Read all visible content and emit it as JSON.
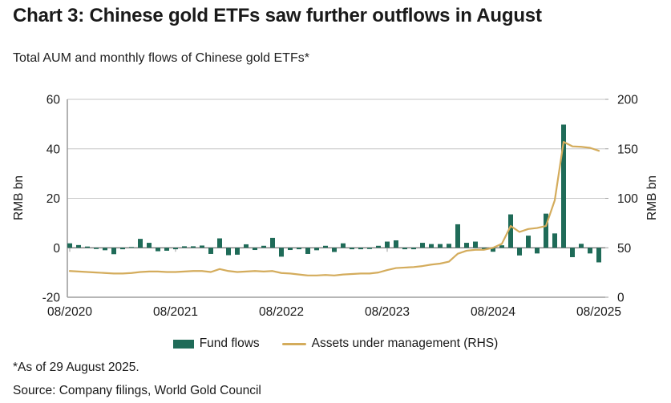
{
  "title": "Chart 3: Chinese gold ETFs saw further outflows in August",
  "subtitle": "Total AUM and monthly flows of Chinese gold ETFs*",
  "footnote": "*As of 29 August 2025.",
  "source": "Source: Company filings, World Gold Council",
  "colors": {
    "bar": "#1f6b58",
    "line": "#d4ac5c",
    "grid": "#c6c6c6",
    "axis": "#9e9e9e",
    "zero_line": "#4d4d4d",
    "text": "#1a1a1a"
  },
  "legend": [
    {
      "label": "Fund flows"
    },
    {
      "label": "Assets under management (RHS)"
    }
  ],
  "chart_data": {
    "type": "bar+line",
    "title": "Total AUM and monthly flows of Chinese gold ETFs",
    "ylabel_left": "RMB bn",
    "ylabel_right": "RMB bn",
    "ylim_left": [
      -20,
      60
    ],
    "ylim_right": [
      0,
      200
    ],
    "left_ticks": [
      60,
      40,
      20,
      0,
      -20
    ],
    "right_ticks": [
      200,
      150,
      100,
      50,
      0
    ],
    "x_tick_every": 12,
    "x_tick_labels": [
      "08/2020",
      "08/2021",
      "08/2022",
      "08/2023",
      "08/2024",
      "08/2025"
    ],
    "grid": "horizontal",
    "legend_position": "bottom-center",
    "months": [
      "08/2020",
      "09/2020",
      "10/2020",
      "11/2020",
      "12/2020",
      "01/2021",
      "02/2021",
      "03/2021",
      "04/2021",
      "05/2021",
      "06/2021",
      "07/2021",
      "08/2021",
      "09/2021",
      "10/2021",
      "11/2021",
      "12/2021",
      "01/2022",
      "02/2022",
      "03/2022",
      "04/2022",
      "05/2022",
      "06/2022",
      "07/2022",
      "08/2022",
      "09/2022",
      "10/2022",
      "11/2022",
      "12/2022",
      "01/2023",
      "02/2023",
      "03/2023",
      "04/2023",
      "05/2023",
      "06/2023",
      "07/2023",
      "08/2023",
      "09/2023",
      "10/2023",
      "11/2023",
      "12/2023",
      "01/2024",
      "02/2024",
      "03/2024",
      "04/2024",
      "05/2024",
      "06/2024",
      "07/2024",
      "08/2024",
      "09/2024",
      "10/2024",
      "11/2024",
      "12/2024",
      "01/2025",
      "02/2025",
      "03/2025",
      "04/2025",
      "05/2025",
      "06/2025",
      "07/2025",
      "08/2025"
    ],
    "series": [
      {
        "name": "Fund flows",
        "axis": "left",
        "type": "bar",
        "values": [
          1.8,
          1.1,
          0.5,
          -0.5,
          -1.0,
          -2.6,
          -0.6,
          0.3,
          3.6,
          2.0,
          -1.4,
          -1.2,
          -0.6,
          0.6,
          0.6,
          0.9,
          -2.5,
          3.8,
          -3.0,
          -2.8,
          1.4,
          -0.9,
          0.8,
          4.0,
          -3.6,
          -0.9,
          -0.6,
          -2.5,
          -1.0,
          0.8,
          -1.7,
          1.8,
          -0.6,
          -0.6,
          -0.5,
          0.8,
          2.5,
          3.0,
          -0.6,
          -0.6,
          2.0,
          1.5,
          1.5,
          1.6,
          9.5,
          2.0,
          2.5,
          -0.8,
          -1.6,
          1.0,
          13.5,
          -3.1,
          4.9,
          -2.3,
          13.8,
          5.8,
          49.8,
          -3.8,
          1.6,
          -2.3,
          -5.9
        ]
      },
      {
        "name": "Assets under management (RHS)",
        "axis": "right",
        "type": "line",
        "values": [
          26.5,
          26,
          25.5,
          25,
          24.5,
          24,
          24,
          24.5,
          25.5,
          26,
          26,
          25.5,
          25.5,
          26,
          26.5,
          26.5,
          25.5,
          28.5,
          26.5,
          25.5,
          26,
          26.5,
          26,
          26.5,
          24.5,
          24,
          23,
          22,
          22,
          22.5,
          22,
          23,
          23.5,
          24,
          24,
          25,
          27.5,
          29.5,
          30,
          30.5,
          31.5,
          33,
          34,
          36,
          44,
          47,
          48,
          48,
          50,
          54,
          72,
          66,
          69,
          70,
          72,
          98,
          157,
          152.5,
          152,
          151,
          148
        ]
      }
    ]
  }
}
